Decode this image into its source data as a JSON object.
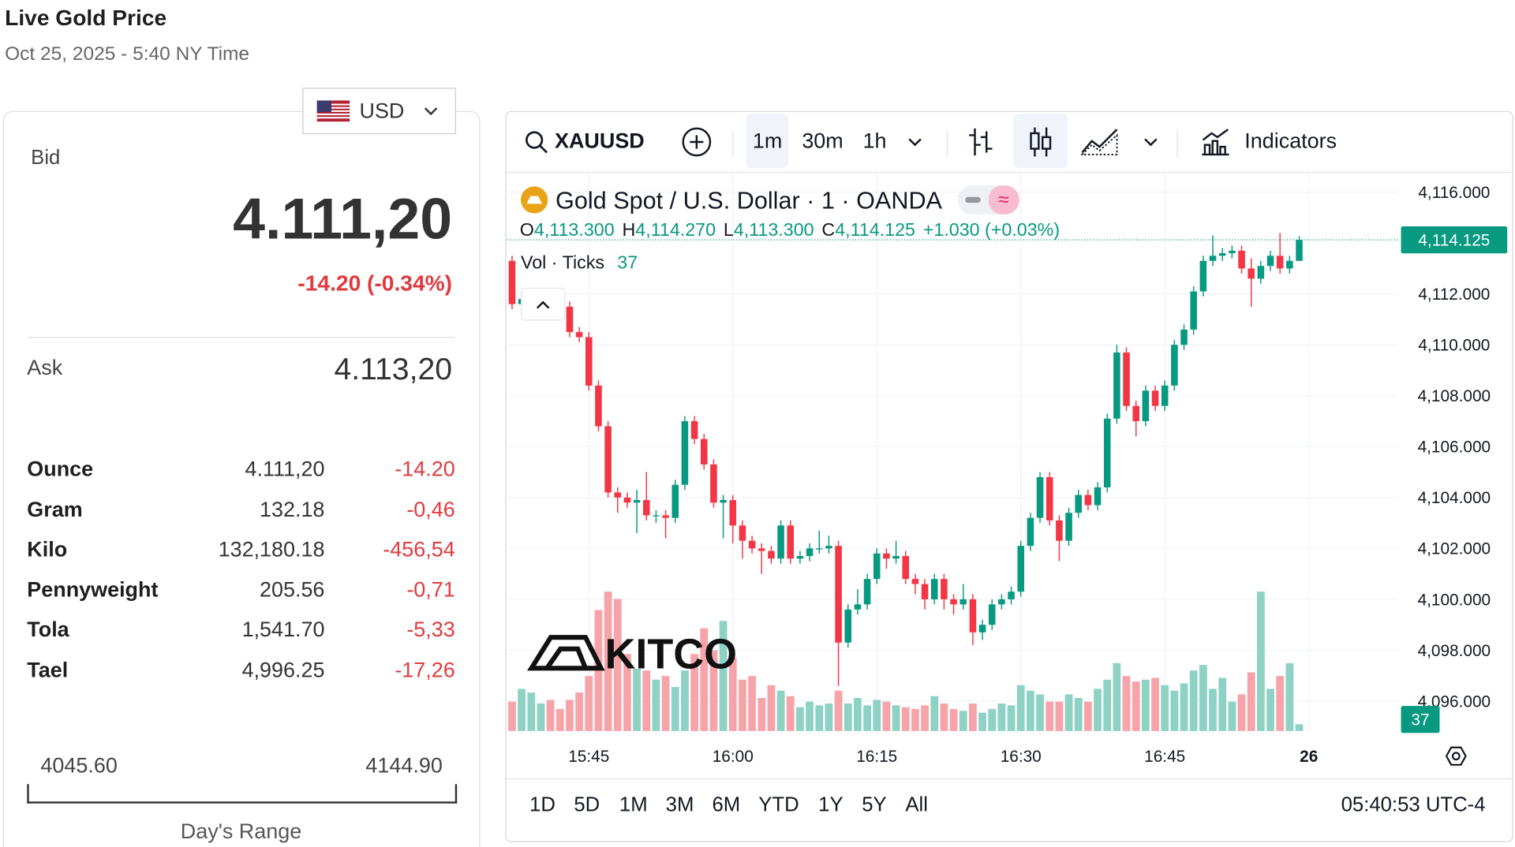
{
  "header": {
    "title": "Live Gold Price",
    "subtitle": "Oct 25, 2025 - 5:40 NY Time"
  },
  "currency": "USD",
  "quote": {
    "bid_label": "Bid",
    "bid": "4.111,20",
    "change": "-14.20 (-0.34%)",
    "ask_label": "Ask",
    "ask": "4.113,20"
  },
  "table": {
    "rows": [
      [
        "Ounce",
        "4.111,20",
        "-14.20"
      ],
      [
        "Gram",
        "132.18",
        "-0,46"
      ],
      [
        "Kilo",
        "132,180.18",
        "-456,54"
      ],
      [
        "Pennyweight",
        "205.56",
        "-0,71"
      ],
      [
        "Tola",
        "1,541.70",
        "-5,33"
      ],
      [
        "Tael",
        "4,996.25",
        "-17,26"
      ]
    ]
  },
  "day_range": {
    "low": "4045.60",
    "high": "4144.90",
    "label": "Day's Range"
  },
  "toolbar": {
    "symbol": "XAUUSD",
    "intervals": [
      "1m",
      "30m",
      "1h"
    ],
    "indicators": "Indicators"
  },
  "range_buttons": [
    "1D",
    "5D",
    "1M",
    "3M",
    "6M",
    "YTD",
    "1Y",
    "5Y",
    "All"
  ],
  "clock": "05:40:53 UTC-4",
  "chart_data": {
    "type": "candlestick",
    "title": "Gold Spot / U.S. Dollar · 1 · OANDA",
    "ohlc_labels": [
      {
        "key": "O",
        "label": "4,113.300"
      },
      {
        "key": "H",
        "label": "4,114.270"
      },
      {
        "key": "L",
        "label": "4,113.300"
      },
      {
        "key": "C",
        "label": "4,114.125"
      }
    ],
    "change_label": "+1.030 (+0.03%)",
    "volume_title": "Vol · Ticks",
    "up_color": "#089981",
    "down_color": "#f23645",
    "volume_up_color": "#8ed2c6",
    "volume_down_color": "#f6a4aa",
    "watermark": "KITCO",
    "open": [
      4113.3,
      4111.6,
      4111.8,
      4111.9,
      4112.0,
      4111.7,
      4111.5,
      4110.5,
      4110.3,
      4108.4,
      4106.8,
      4104.2,
      4104.0,
      4103.8,
      4103.9,
      4103.3,
      4103.3,
      4103.2,
      4104.5,
      4107.0,
      4106.3,
      4105.3,
      4103.8,
      4103.9,
      4102.9,
      4102.3,
      4102.0,
      4101.9,
      4101.6,
      4102.9,
      4101.6,
      4101.7,
      4102.0,
      4102.0,
      4102.1,
      4098.3,
      4099.6,
      4099.8,
      4100.8,
      4101.8,
      4101.6,
      4101.7,
      4100.8,
      4100.6,
      4100.0,
      4100.8,
      4100.0,
      4099.8,
      4100.0,
      4098.7,
      4099.0,
      4099.8,
      4100.0,
      4100.3,
      4102.1,
      4103.2,
      4104.8,
      4103.1,
      4102.3,
      4103.4,
      4104.1,
      4103.7,
      4104.4,
      4107.1,
      4109.7,
      4107.6,
      4107.0,
      4108.2,
      4107.6,
      4108.4,
      4110.0,
      4110.6,
      4112.1,
      4113.3,
      4113.5,
      4113.6,
      4113.7,
      4113.0,
      4112.6,
      4113.1,
      4113.5,
      4113.0,
      4113.3
    ],
    "high": [
      4113.5,
      4112.0,
      4112.1,
      4112.2,
      4112.2,
      4111.9,
      4111.7,
      4110.7,
      4110.5,
      4108.6,
      4107.0,
      4104.4,
      4104.2,
      4104.3,
      4105.0,
      4103.5,
      4103.5,
      4104.7,
      4107.2,
      4107.2,
      4106.5,
      4105.5,
      4104.1,
      4104.1,
      4103.1,
      4102.5,
      4102.2,
      4102.1,
      4103.1,
      4103.1,
      4101.9,
      4102.2,
      4102.7,
      4102.5,
      4102.3,
      4099.8,
      4100.4,
      4101.0,
      4102.0,
      4102.0,
      4102.3,
      4101.9,
      4101.0,
      4100.8,
      4101.0,
      4101.0,
      4100.2,
      4100.6,
      4100.2,
      4099.2,
      4100.0,
      4100.2,
      4100.5,
      4102.3,
      4103.4,
      4105.0,
      4105.0,
      4103.3,
      4103.6,
      4104.3,
      4104.3,
      4104.6,
      4107.3,
      4110.0,
      4109.9,
      4107.8,
      4108.4,
      4108.4,
      4108.6,
      4110.2,
      4110.8,
      4112.3,
      4113.5,
      4114.3,
      4113.8,
      4113.9,
      4113.9,
      4113.4,
      4113.3,
      4113.7,
      4114.4,
      4113.5,
      4114.27
    ],
    "low": [
      4111.4,
      4111.4,
      4111.6,
      4111.7,
      4111.5,
      4111.3,
      4110.3,
      4110.1,
      4108.2,
      4106.6,
      4104.0,
      4103.4,
      4103.6,
      4102.6,
      4103.1,
      4103.0,
      4102.4,
      4103.0,
      4104.3,
      4106.1,
      4105.1,
      4103.6,
      4102.4,
      4102.2,
      4101.6,
      4101.8,
      4101.0,
      4101.4,
      4101.4,
      4101.4,
      4101.4,
      4101.5,
      4101.8,
      4101.8,
      4096.6,
      4098.1,
      4099.4,
      4099.6,
      4100.6,
      4101.2,
      4101.4,
      4100.6,
      4100.2,
      4099.6,
      4099.8,
      4099.6,
      4099.4,
      4099.6,
      4098.2,
      4098.4,
      4098.8,
      4099.6,
      4099.8,
      4100.1,
      4101.9,
      4103.0,
      4102.9,
      4101.5,
      4102.1,
      4103.2,
      4103.5,
      4103.5,
      4104.2,
      4106.9,
      4107.4,
      4106.4,
      4106.8,
      4107.4,
      4107.4,
      4108.2,
      4109.8,
      4110.4,
      4111.9,
      4113.1,
      4113.3,
      4113.4,
      4112.8,
      4111.5,
      4112.4,
      4112.9,
      4112.8,
      4112.8,
      4113.3
    ],
    "close": [
      4111.6,
      4111.8,
      4111.9,
      4112.0,
      4111.7,
      4111.5,
      4110.5,
      4110.3,
      4108.4,
      4106.8,
      4104.2,
      4104.0,
      4103.8,
      4103.9,
      4103.3,
      4103.3,
      4103.2,
      4104.5,
      4107.0,
      4106.3,
      4105.3,
      4103.8,
      4103.9,
      4102.9,
      4102.3,
      4102.0,
      4101.9,
      4101.6,
      4102.9,
      4101.6,
      4101.7,
      4102.0,
      4102.0,
      4102.1,
      4098.3,
      4099.6,
      4099.8,
      4100.8,
      4101.8,
      4101.6,
      4101.7,
      4100.8,
      4100.6,
      4100.0,
      4100.8,
      4100.0,
      4099.8,
      4100.0,
      4098.7,
      4099.0,
      4099.8,
      4100.0,
      4100.3,
      4102.1,
      4103.2,
      4104.8,
      4103.1,
      4102.3,
      4103.4,
      4104.1,
      4103.7,
      4104.4,
      4107.1,
      4109.7,
      4107.6,
      4107.0,
      4108.2,
      4107.6,
      4108.4,
      4110.0,
      4110.6,
      4112.1,
      4113.3,
      4113.5,
      4113.6,
      4113.7,
      4113.0,
      4112.6,
      4113.1,
      4113.5,
      4113.0,
      4113.3,
      4114.125
    ],
    "volume": [
      160,
      230,
      210,
      150,
      170,
      120,
      170,
      210,
      300,
      660,
      760,
      720,
      420,
      340,
      330,
      280,
      300,
      240,
      330,
      420,
      560,
      440,
      600,
      400,
      280,
      300,
      180,
      250,
      220,
      190,
      130,
      160,
      140,
      150,
      220,
      150,
      180,
      140,
      170,
      160,
      140,
      130,
      120,
      140,
      190,
      150,
      120,
      110,
      150,
      100,
      120,
      150,
      140,
      250,
      220,
      200,
      160,
      160,
      200,
      180,
      160,
      230,
      280,
      370,
      300,
      270,
      280,
      290,
      250,
      220,
      260,
      330,
      360,
      230,
      290,
      160,
      200,
      320,
      760,
      230,
      300,
      370,
      37
    ],
    "xlim": [
      -0.5,
      92.3
    ],
    "xticks": [
      {
        "value": 8,
        "label": "15:45"
      },
      {
        "value": 23,
        "label": "16:00"
      },
      {
        "value": 38,
        "label": "16:15"
      },
      {
        "value": 53,
        "label": "16:30"
      },
      {
        "value": 68,
        "label": "16:45"
      },
      {
        "value": 83,
        "label": "26"
      }
    ],
    "ylim": [
      4094.71,
      4116.72
    ],
    "yticks": [
      {
        "value": 4096,
        "label": "4,096.000"
      },
      {
        "value": 4098,
        "label": "4,098.000"
      },
      {
        "value": 4100,
        "label": "4,100.000"
      },
      {
        "value": 4102,
        "label": "4,102.000"
      },
      {
        "value": 4104,
        "label": "4,104.000"
      },
      {
        "value": 4106,
        "label": "4,106.000"
      },
      {
        "value": 4108,
        "label": "4,108.000"
      },
      {
        "value": 4110,
        "label": "4,110.000"
      },
      {
        "value": 4112,
        "label": "4,112.000"
      },
      {
        "value": 4116,
        "label": "4,116.000"
      }
    ],
    "grid": true
  }
}
